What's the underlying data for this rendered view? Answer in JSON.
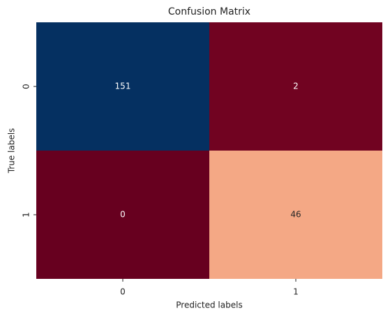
{
  "chart_data": {
    "type": "heatmap",
    "title": "Confusion Matrix",
    "xlabel": "Predicted labels",
    "ylabel": "True labels",
    "x_categories": [
      "0",
      "1"
    ],
    "y_categories": [
      "0",
      "1"
    ],
    "values": [
      [
        151,
        2
      ],
      [
        0,
        46
      ]
    ],
    "colormap": [
      "#67001f",
      "#b2182b",
      "#d6604d",
      "#f4a582",
      "#fddbc7",
      "#f7f7f7",
      "#d1e5f0",
      "#92c5de",
      "#4393c3",
      "#2166ac",
      "#053061"
    ]
  }
}
